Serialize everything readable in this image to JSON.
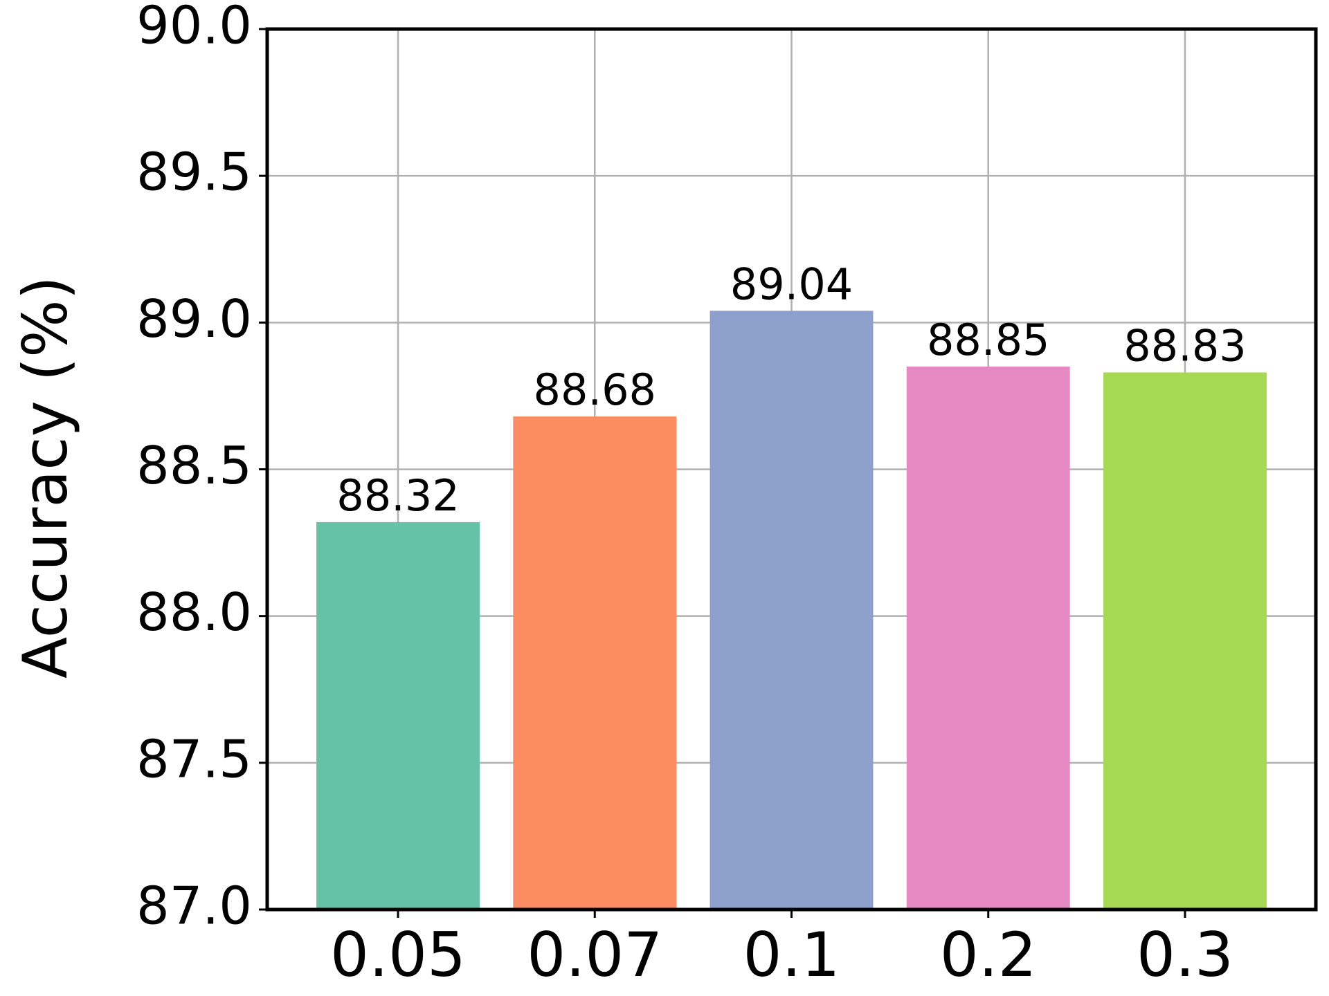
{
  "chart_data": {
    "type": "bar",
    "ylabel": "Accuracy (%)",
    "categories": [
      "0.05",
      "0.07",
      "0.1",
      "0.2",
      "0.3"
    ],
    "values": [
      88.32,
      88.68,
      89.04,
      88.85,
      88.83
    ],
    "colors": [
      "#66c2a5",
      "#fc8d62",
      "#8da0cb",
      "#e78ac3",
      "#a6d854"
    ],
    "ylim": [
      87,
      90
    ],
    "yticks": [
      {
        "value": 87,
        "label": "87.0"
      },
      {
        "value": 87.5,
        "label": "87.5"
      },
      {
        "value": 88,
        "label": "88.0"
      },
      {
        "value": 88.5,
        "label": "88.5"
      },
      {
        "value": 89,
        "label": "89.0"
      },
      {
        "value": 89.5,
        "label": "89.5"
      },
      {
        "value": 90,
        "label": "90.0"
      }
    ],
    "grid": true
  }
}
